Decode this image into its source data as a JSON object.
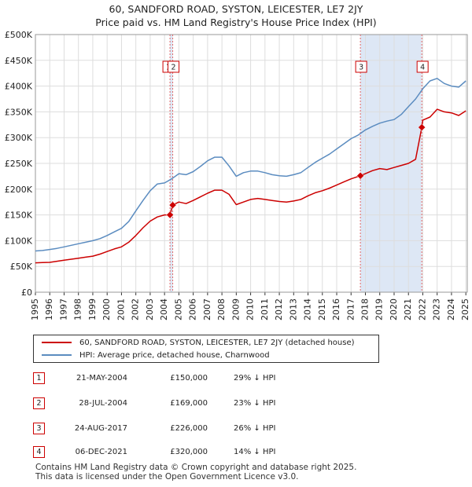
{
  "chart_data": {
    "type": "line",
    "title": "60, SANDFORD ROAD, SYSTON, LEICESTER, LE7 2JY",
    "subtitle": "Price paid vs. HM Land Registry's House Price Index (HPI)",
    "xlim": [
      1995,
      2025.1
    ],
    "ylim": [
      0,
      500000
    ],
    "x_ticks": [
      1995,
      1996,
      1997,
      1998,
      1999,
      2000,
      2001,
      2002,
      2003,
      2004,
      2005,
      2006,
      2007,
      2008,
      2009,
      2010,
      2011,
      2012,
      2013,
      2014,
      2015,
      2016,
      2017,
      2018,
      2019,
      2020,
      2021,
      2022,
      2023,
      2024,
      2025
    ],
    "y_ticks": [
      {
        "value": 0,
        "label": "£0"
      },
      {
        "value": 50000,
        "label": "£50K"
      },
      {
        "value": 100000,
        "label": "£100K"
      },
      {
        "value": 150000,
        "label": "£150K"
      },
      {
        "value": 200000,
        "label": "£200K"
      },
      {
        "value": 250000,
        "label": "£250K"
      },
      {
        "value": 300000,
        "label": "£300K"
      },
      {
        "value": 350000,
        "label": "£350K"
      },
      {
        "value": 400000,
        "label": "£400K"
      },
      {
        "value": 450000,
        "label": "£450K"
      },
      {
        "value": 500000,
        "label": "£500K"
      }
    ],
    "grid": true,
    "legend_position": "bottom",
    "shaded_regions": [
      {
        "x0": 2004.38,
        "x1": 2004.57
      },
      {
        "x0": 2017.65,
        "x1": 2021.93
      }
    ],
    "series": [
      {
        "name": "60, SANDFORD ROAD, SYSTON, LEICESTER, LE7 2JY (detached house)",
        "color": "#cc0000",
        "x": [
          1995,
          1995.5,
          1996,
          1996.5,
          1997,
          1997.5,
          1998,
          1998.5,
          1999,
          1999.5,
          2000,
          2000.5,
          2001,
          2001.5,
          2002,
          2002.5,
          2003,
          2003.5,
          2004,
          2004.38,
          2004.57,
          2005,
          2005.5,
          2006,
          2006.5,
          2007,
          2007.5,
          2008,
          2008.5,
          2009,
          2009.5,
          2010,
          2010.5,
          2011,
          2011.5,
          2012,
          2012.5,
          2013,
          2013.5,
          2014,
          2014.5,
          2015,
          2015.5,
          2016,
          2016.5,
          2017,
          2017.65,
          2018,
          2018.5,
          2019,
          2019.5,
          2020,
          2020.5,
          2021,
          2021.5,
          2021.93,
          2022,
          2022.5,
          2023,
          2023.5,
          2024,
          2024.5,
          2025
        ],
        "values": [
          57000,
          57500,
          58000,
          60000,
          62000,
          64000,
          66000,
          68000,
          70000,
          74000,
          79000,
          84000,
          88000,
          97000,
          110000,
          125000,
          138000,
          146000,
          150000,
          150000,
          169000,
          175000,
          172000,
          178000,
          185000,
          192000,
          198000,
          198000,
          190000,
          170000,
          175000,
          180000,
          182000,
          180000,
          178000,
          176000,
          175000,
          177000,
          180000,
          187000,
          193000,
          197000,
          202000,
          208000,
          214000,
          220000,
          226000,
          230000,
          236000,
          240000,
          238000,
          242000,
          246000,
          250000,
          258000,
          320000,
          334000,
          340000,
          355000,
          350000,
          348000,
          343000,
          352000
        ]
      },
      {
        "name": "HPI: Average price, detached house, Charnwood",
        "color": "#5b8cc0",
        "x": [
          1995,
          1995.5,
          1996,
          1996.5,
          1997,
          1997.5,
          1998,
          1998.5,
          1999,
          1999.5,
          2000,
          2000.5,
          2001,
          2001.5,
          2002,
          2002.5,
          2003,
          2003.5,
          2004,
          2004.5,
          2005,
          2005.5,
          2006,
          2006.5,
          2007,
          2007.5,
          2008,
          2008.5,
          2009,
          2009.5,
          2010,
          2010.5,
          2011,
          2011.5,
          2012,
          2012.5,
          2013,
          2013.5,
          2014,
          2014.5,
          2015,
          2015.5,
          2016,
          2016.5,
          2017,
          2017.5,
          2018,
          2018.5,
          2019,
          2019.5,
          2020,
          2020.5,
          2021,
          2021.5,
          2022,
          2022.5,
          2023,
          2023.5,
          2024,
          2024.5,
          2025
        ],
        "values": [
          80000,
          81000,
          83000,
          85000,
          88000,
          91000,
          94000,
          97000,
          100000,
          104000,
          110000,
          117000,
          124000,
          137000,
          158000,
          178000,
          197000,
          210000,
          212000,
          220000,
          230000,
          228000,
          234000,
          244000,
          255000,
          262000,
          262000,
          245000,
          225000,
          232000,
          235000,
          235000,
          232000,
          228000,
          226000,
          225000,
          228000,
          232000,
          242000,
          252000,
          260000,
          268000,
          278000,
          288000,
          298000,
          305000,
          315000,
          322000,
          328000,
          332000,
          335000,
          345000,
          360000,
          375000,
          395000,
          410000,
          415000,
          405000,
          400000,
          398000,
          410000
        ]
      }
    ],
    "sales": [
      {
        "id": "1",
        "x": 2004.38,
        "y": 150000,
        "date": "21-MAY-2004",
        "price": "£150,000",
        "hpi": "29% ↓ HPI"
      },
      {
        "id": "2",
        "x": 2004.57,
        "y": 169000,
        "date": "28-JUL-2004",
        "price": "£169,000",
        "hpi": "23% ↓ HPI"
      },
      {
        "id": "3",
        "x": 2017.65,
        "y": 226000,
        "date": "24-AUG-2017",
        "price": "£226,000",
        "hpi": "26% ↓ HPI"
      },
      {
        "id": "4",
        "x": 2021.93,
        "y": 320000,
        "date": "06-DEC-2021",
        "price": "£320,000",
        "hpi": "14% ↓ HPI"
      }
    ],
    "chart_badges": [
      {
        "id": "1",
        "x": 2004.38
      },
      {
        "id": "2",
        "x": 2004.57
      },
      {
        "id": "3",
        "x": 2017.65
      },
      {
        "id": "4",
        "x": 2021.93
      }
    ]
  },
  "footer": {
    "line1": "Contains HM Land Registry data © Crown copyright and database right 2025.",
    "line2": "This data is licensed under the Open Government Licence v3.0."
  }
}
